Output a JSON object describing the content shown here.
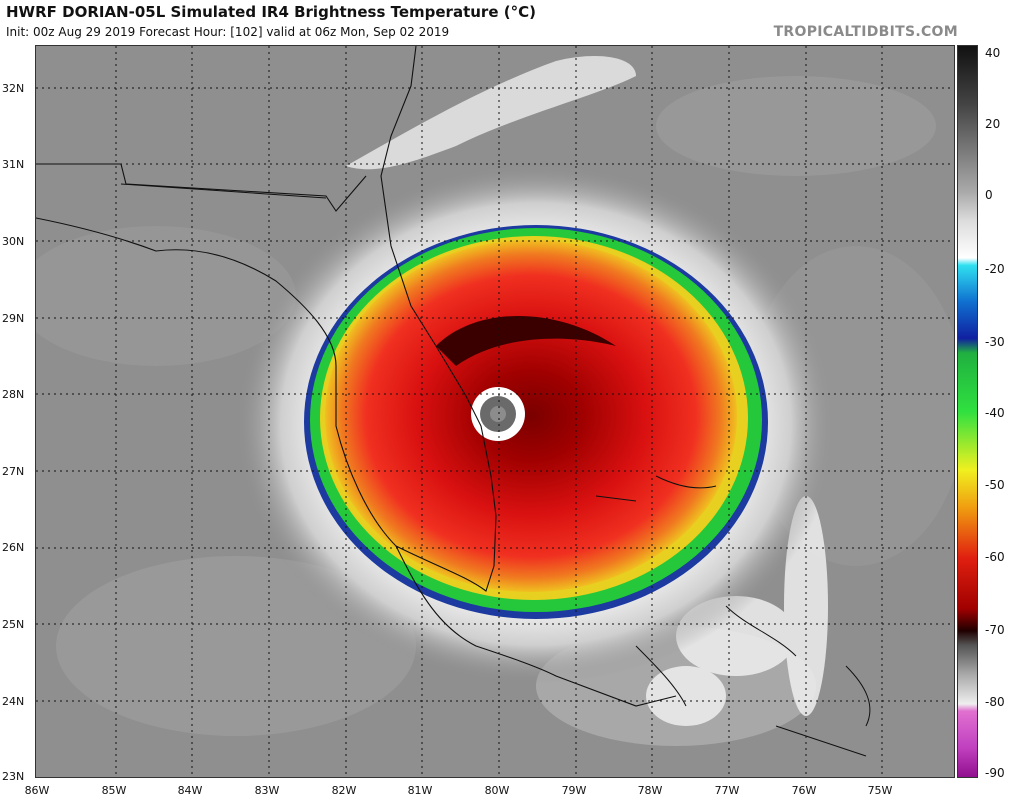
{
  "header": {
    "title": "HWRF DORIAN-05L Simulated IR4 Brightness Temperature (°C)",
    "subtitle": "Init: 00z Aug 29 2019   Forecast Hour: [102]   valid at 06z Mon, Sep 02 2019",
    "brand": "TROPICALTIDBITS.COM"
  },
  "map": {
    "lat_labels": [
      "32N",
      "31N",
      "30N",
      "29N",
      "28N",
      "27N",
      "26N",
      "25N",
      "24N",
      "23N"
    ],
    "lon_labels": [
      "86W",
      "85W",
      "84W",
      "83W",
      "82W",
      "81W",
      "80W",
      "79W",
      "78W",
      "77W",
      "76W",
      "75W"
    ]
  },
  "colorbar": {
    "labels": [
      "40",
      "20",
      "0",
      "-20",
      "-30",
      "-40",
      "-50",
      "-60",
      "-70",
      "-80",
      "-90"
    ]
  },
  "colors": {
    "land_ocean_gray": "#8f8f8f",
    "cloud_white": "#f4f4f4",
    "cold_red": "#e01010",
    "coldest_dark": "#5a0000",
    "ring_green": "#20d040",
    "ring_blue": "#1428a0"
  }
}
